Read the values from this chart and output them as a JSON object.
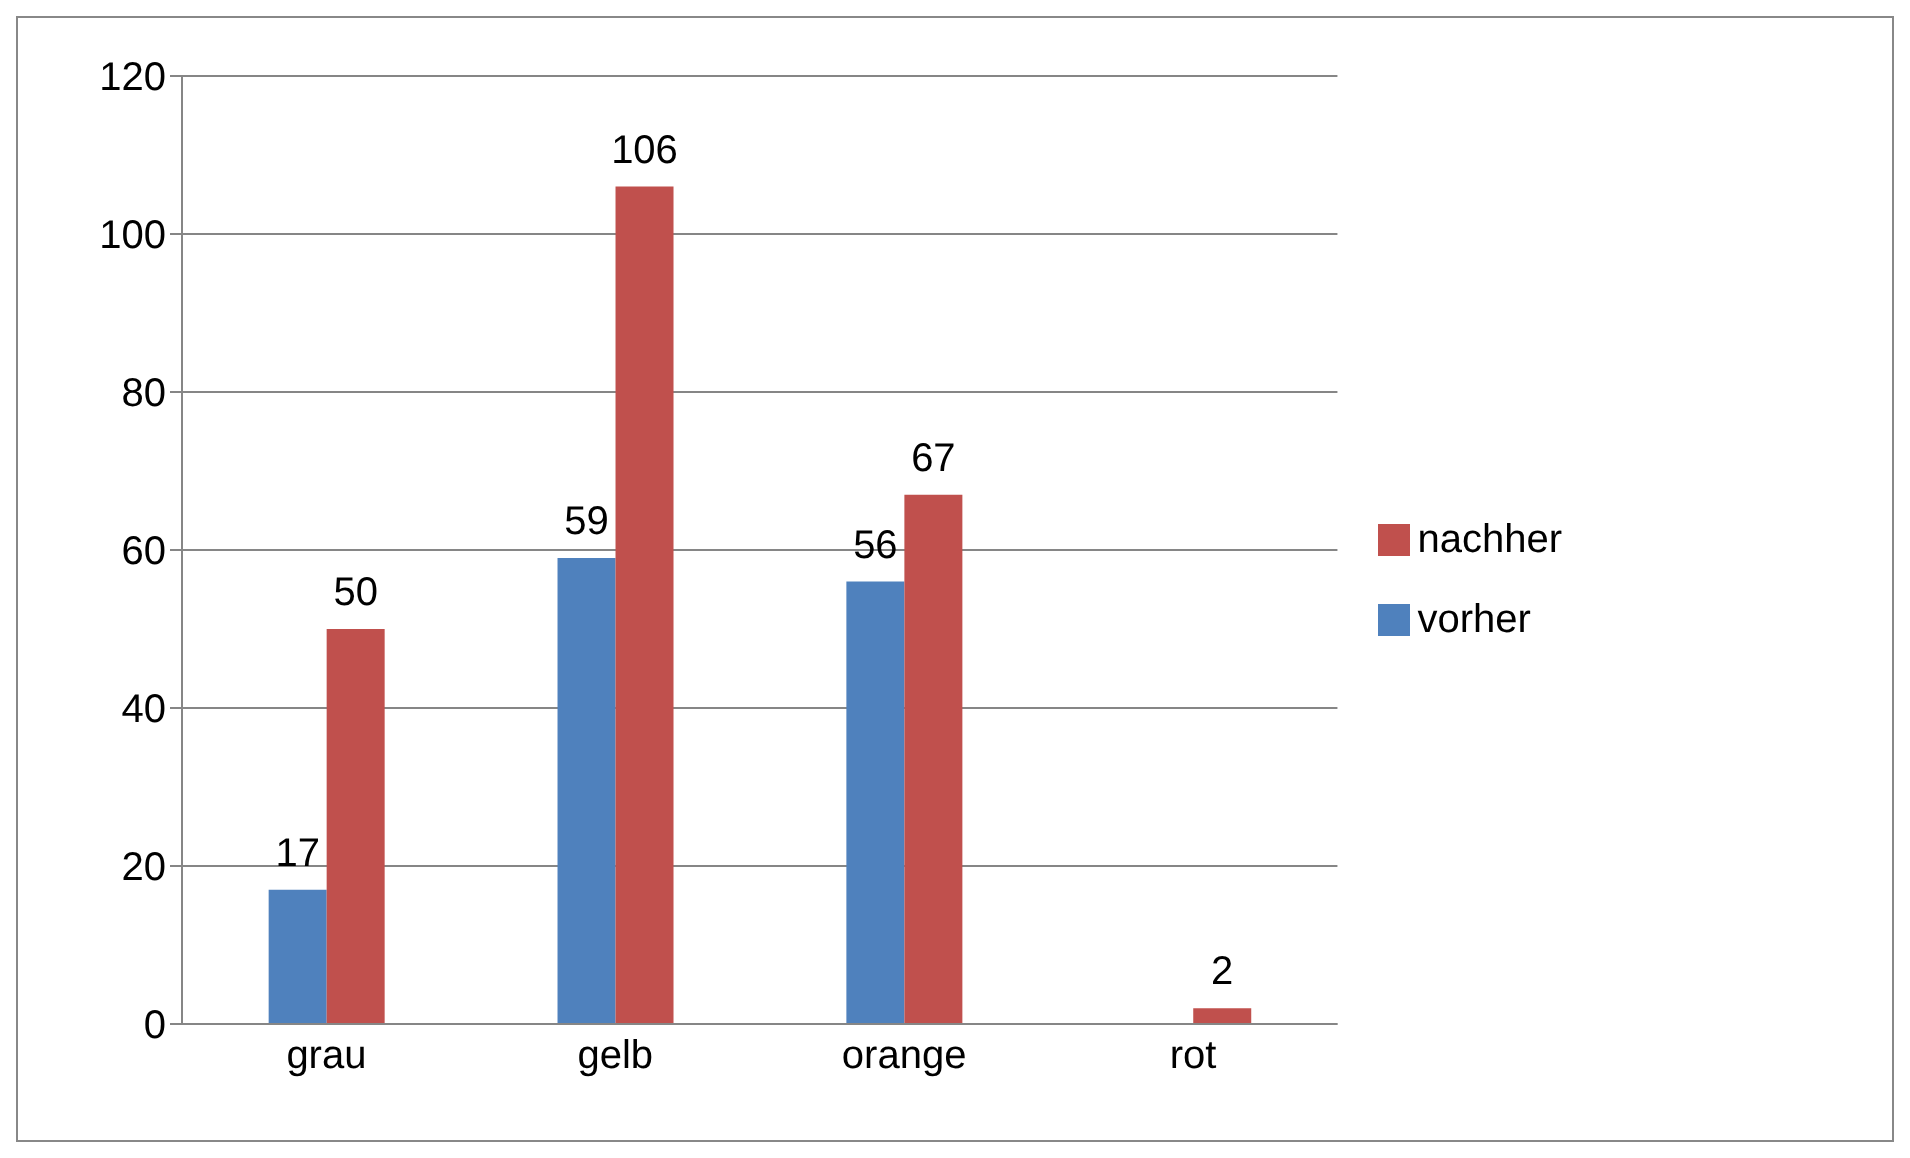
{
  "chart_data": {
    "type": "bar",
    "categories": [
      "grau",
      "gelb",
      "orange",
      "rot"
    ],
    "series": [
      {
        "name": "vorher",
        "color": "#4f81bd",
        "values": [
          17,
          59,
          56,
          null
        ]
      },
      {
        "name": "nachher",
        "color": "#c0504d",
        "values": [
          50,
          106,
          67,
          2
        ]
      }
    ],
    "ylim": [
      0,
      120
    ],
    "yticks": [
      0,
      20,
      40,
      60,
      80,
      100,
      120
    ],
    "grid": "y",
    "legend": "right",
    "data_labels": true
  }
}
